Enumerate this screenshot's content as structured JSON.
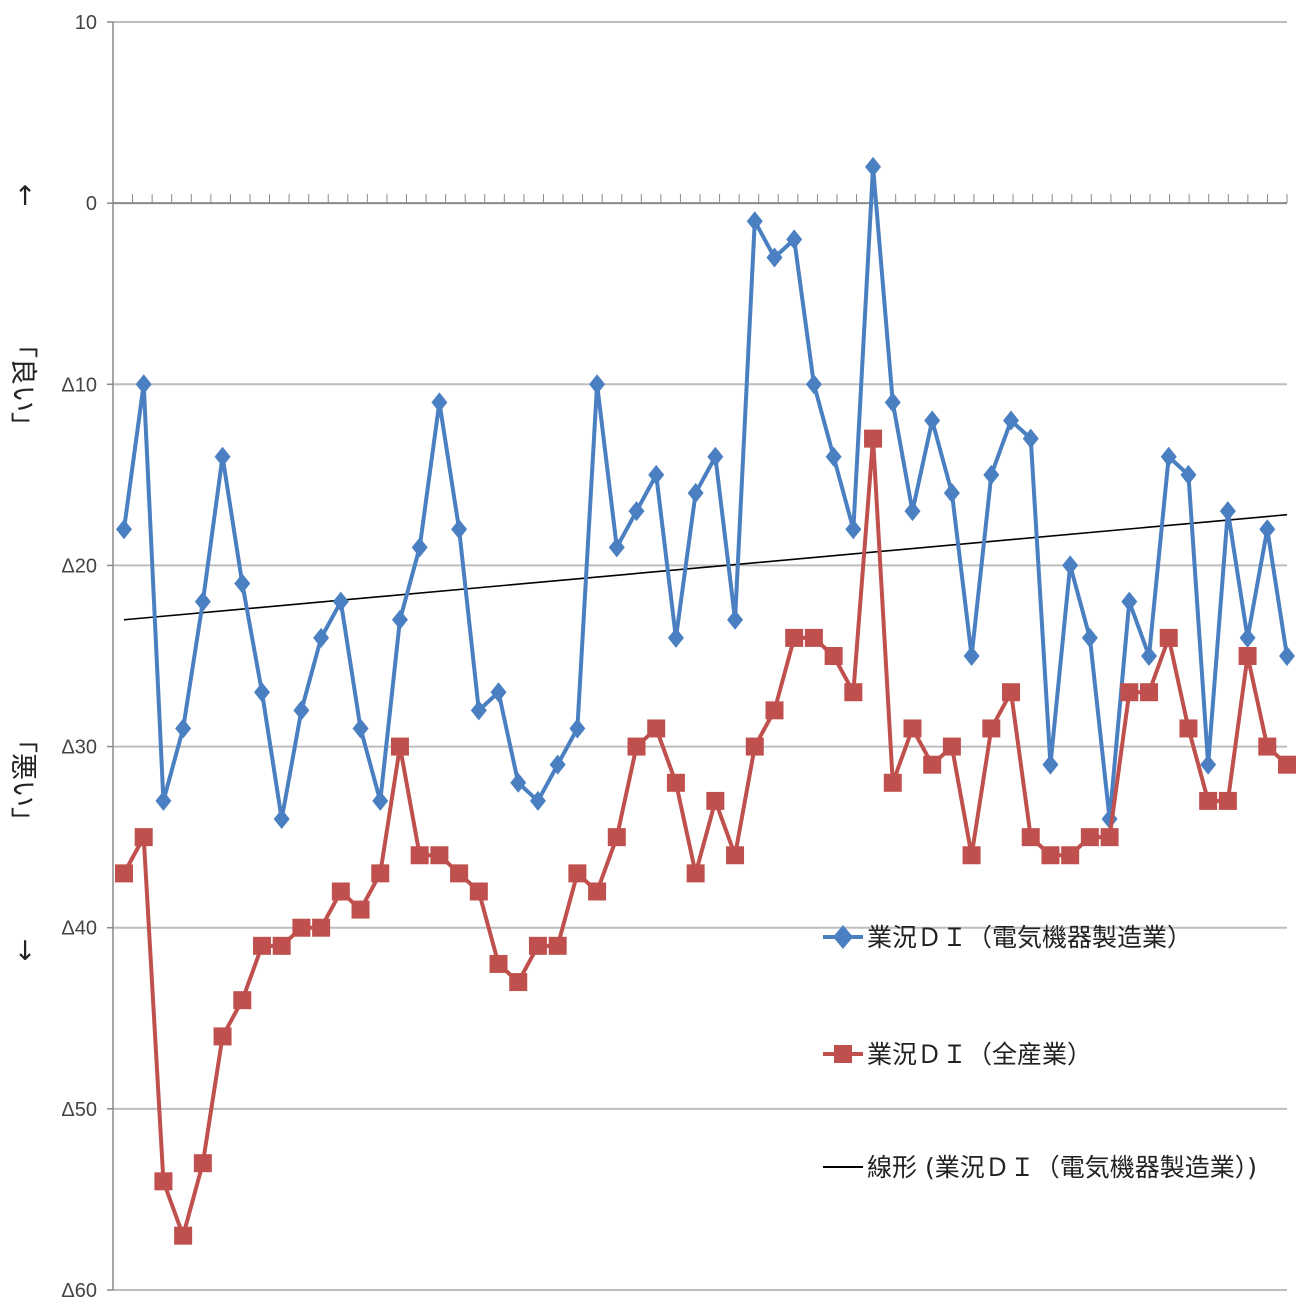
{
  "chart_data": {
    "type": "line",
    "ylim": [
      -60,
      10
    ],
    "y_ticks": [
      10,
      0,
      -10,
      -20,
      -30,
      -40,
      -50,
      -60
    ],
    "y_tick_labels": [
      "10",
      "0",
      "Δ10",
      "Δ20",
      "Δ30",
      "Δ40",
      "Δ50",
      "Δ60"
    ],
    "grid": true,
    "legend_position": "lower-right",
    "side_labels": {
      "up_arrow": "↑",
      "good": "「良い」",
      "bad": "「悪い」",
      "down_arrow": "↓"
    },
    "series": [
      {
        "name": "業況ＤＩ（電気機器製造業）",
        "color": "#4a7fc1",
        "marker": "diamond",
        "values": [
          -18,
          -10,
          -33,
          -29,
          -22,
          -14,
          -21,
          -27,
          -34,
          -28,
          -24,
          -22,
          -29,
          -33,
          -23,
          -19,
          -11,
          -18,
          -28,
          -27,
          -32,
          -33,
          -31,
          -29,
          -10,
          -19,
          -17,
          -15,
          -24,
          -16,
          -14,
          -23,
          -1,
          -3,
          -2,
          -10,
          -14,
          -18,
          2,
          -11,
          -17,
          -12,
          -16,
          -25,
          -15,
          -12,
          -13,
          -31,
          -20,
          -24,
          -34,
          -22,
          -25,
          -14,
          -15,
          -31,
          -17,
          -24,
          -18,
          -25
        ]
      },
      {
        "name": "業況ＤＩ（全産業）",
        "color": "#c0504d",
        "marker": "square",
        "values": [
          -37,
          -35,
          -54,
          -57,
          -53,
          -46,
          -44,
          -41,
          -41,
          -40,
          -40,
          -38,
          -39,
          -37,
          -30,
          -36,
          -36,
          -37,
          -38,
          -42,
          -43,
          -41,
          -41,
          -37,
          -38,
          -35,
          -30,
          -29,
          -32,
          -37,
          -33,
          -36,
          -30,
          -28,
          -24,
          -24,
          -25,
          -27,
          -13,
          -32,
          -29,
          -31,
          -30,
          -36,
          -29,
          -27,
          -35,
          -36,
          -36,
          -35,
          -35,
          -27,
          -27,
          -24,
          -29,
          -33,
          -33,
          -25,
          -30,
          -31
        ]
      },
      {
        "name": "線形 (業況ＤＩ（電気機器製造業）)",
        "color": "#000000",
        "marker": "none",
        "trend_of": 0,
        "start": -23,
        "end": -17.2
      }
    ]
  }
}
